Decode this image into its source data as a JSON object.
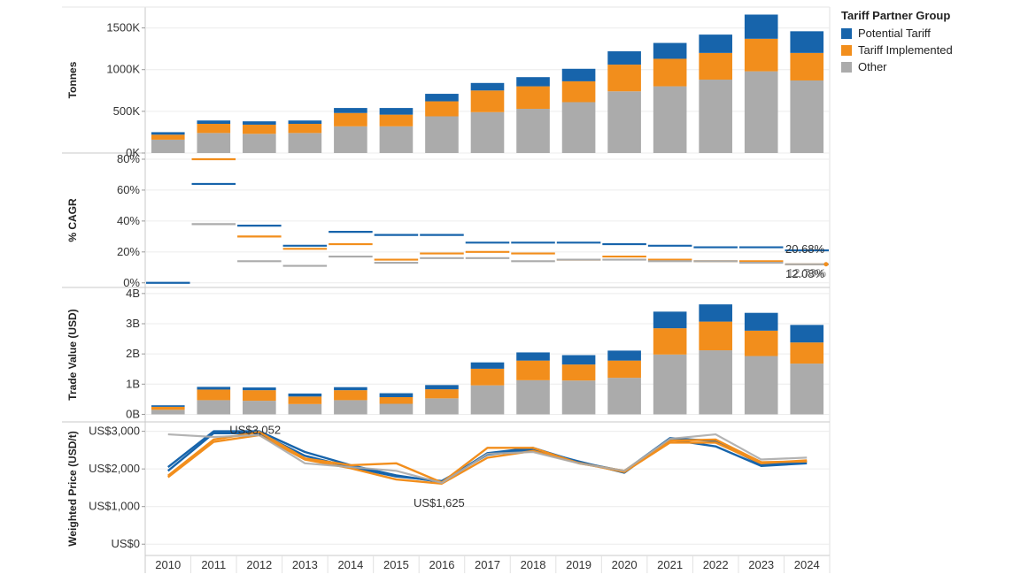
{
  "legend": {
    "title": "Tariff Partner Group",
    "items": [
      {
        "label": "Potential Tariff",
        "color": "#1764AB"
      },
      {
        "label": "Tariff Implemented",
        "color": "#F28E1C"
      },
      {
        "label": "Other",
        "color": "#ABABAB"
      }
    ]
  },
  "chart_data": [
    {
      "type": "bar",
      "stacked": true,
      "title": "",
      "ylabel": "Tonnes",
      "ylim": [
        0,
        1750000
      ],
      "yticks": [
        0,
        500000,
        1000000,
        1500000
      ],
      "yticklabels": [
        "0K",
        "500K",
        "1000K",
        "1500K"
      ],
      "categories": [
        "2010",
        "2011",
        "2012",
        "2013",
        "2014",
        "2015",
        "2016",
        "2017",
        "2018",
        "2019",
        "2020",
        "2021",
        "2022",
        "2023",
        "2024"
      ],
      "series": [
        {
          "name": "Other",
          "values": [
            160000,
            240000,
            230000,
            240000,
            320000,
            320000,
            440000,
            490000,
            530000,
            610000,
            740000,
            800000,
            880000,
            980000,
            870000
          ]
        },
        {
          "name": "Tariff Implemented",
          "values": [
            60000,
            110000,
            110000,
            110000,
            160000,
            140000,
            180000,
            260000,
            270000,
            250000,
            320000,
            330000,
            320000,
            390000,
            330000
          ]
        },
        {
          "name": "Potential Tariff",
          "values": [
            30000,
            40000,
            40000,
            40000,
            60000,
            80000,
            90000,
            90000,
            110000,
            150000,
            160000,
            190000,
            220000,
            290000,
            260000
          ]
        }
      ]
    },
    {
      "type": "line",
      "style": "segments",
      "ylabel": "% CAGR",
      "ylim": [
        -3,
        84
      ],
      "yticks": [
        0,
        20,
        40,
        60,
        80
      ],
      "yticklabels": [
        "0%",
        "20%",
        "40%",
        "60%",
        "80%"
      ],
      "categories": [
        "2010",
        "2011",
        "2012",
        "2013",
        "2014",
        "2015",
        "2016",
        "2017",
        "2018",
        "2019",
        "2020",
        "2021",
        "2022",
        "2023",
        "2024"
      ],
      "series": [
        {
          "name": "Potential Tariff",
          "values": [
            0,
            64,
            37,
            24,
            33,
            31,
            31,
            26,
            26,
            26,
            25,
            24,
            23,
            23,
            21
          ]
        },
        {
          "name": "Tariff Implemented",
          "values": [
            null,
            80,
            30,
            22,
            25,
            15,
            19,
            20,
            19,
            15,
            17,
            15,
            14,
            14,
            12
          ]
        },
        {
          "name": "Other",
          "values": [
            null,
            38,
            14,
            11,
            17,
            13,
            16,
            16,
            14,
            15,
            15,
            14,
            14,
            13,
            12
          ]
        }
      ],
      "annotations": [
        "20.68%",
        "12.08%",
        "12.73%"
      ]
    },
    {
      "type": "bar",
      "stacked": true,
      "ylabel": "Trade Value (USD)",
      "ylim": [
        -0.25,
        4.2
      ],
      "yticks": [
        0,
        1,
        2,
        3,
        4
      ],
      "yticklabels": [
        "0B",
        "1B",
        "2B",
        "3B",
        "4B"
      ],
      "categories": [
        "2010",
        "2011",
        "2012",
        "2013",
        "2014",
        "2015",
        "2016",
        "2017",
        "2018",
        "2019",
        "2020",
        "2021",
        "2022",
        "2023",
        "2024"
      ],
      "series": [
        {
          "name": "Other",
          "values": [
            0.15,
            0.47,
            0.45,
            0.34,
            0.47,
            0.35,
            0.53,
            0.96,
            1.13,
            1.12,
            1.21,
            1.98,
            2.12,
            1.93,
            1.68
          ]
        },
        {
          "name": "Tariff Implemented",
          "values": [
            0.1,
            0.35,
            0.35,
            0.25,
            0.33,
            0.22,
            0.3,
            0.55,
            0.65,
            0.53,
            0.57,
            0.87,
            0.95,
            0.84,
            0.7
          ]
        },
        {
          "name": "Potential Tariff",
          "values": [
            0.05,
            0.09,
            0.09,
            0.1,
            0.1,
            0.13,
            0.14,
            0.21,
            0.27,
            0.31,
            0.33,
            0.55,
            0.57,
            0.59,
            0.58
          ]
        }
      ]
    },
    {
      "type": "line",
      "ylabel": "Weighted Price (USD/t)",
      "ylim": [
        -300,
        3250
      ],
      "yticks": [
        0,
        1000,
        2000,
        3000
      ],
      "yticklabels": [
        "US$0",
        "US$1,000",
        "US$2,000",
        "US$3,000"
      ],
      "categories": [
        "2010",
        "2011",
        "2012",
        "2013",
        "2014",
        "2015",
        "2016",
        "2017",
        "2018",
        "2019",
        "2020",
        "2021",
        "2022",
        "2023",
        "2024"
      ],
      "series": [
        {
          "name": "Potential Tariff",
          "values": [
            2050,
            3000,
            3000,
            2450,
            2100,
            1830,
            1650,
            2420,
            2560,
            2180,
            1940,
            2820,
            2740,
            2120,
            2200
          ]
        },
        {
          "name": "Potential Tariff",
          "values": [
            1950,
            2950,
            2950,
            2350,
            2050,
            1800,
            1680,
            2380,
            2520,
            2200,
            1900,
            2780,
            2600,
            2080,
            2150
          ]
        },
        {
          "name": "Tariff Implemented",
          "values": [
            1820,
            2780,
            2980,
            2280,
            2100,
            2150,
            1640,
            2560,
            2560,
            2150,
            1950,
            2750,
            2780,
            2180,
            2200
          ]
        },
        {
          "name": "Tariff Implemented",
          "values": [
            1780,
            2720,
            2900,
            2250,
            2020,
            1720,
            1610,
            2300,
            2480,
            2160,
            1920,
            2700,
            2700,
            2150,
            2230
          ]
        },
        {
          "name": "Other",
          "values": [
            2920,
            2850,
            2900,
            2150,
            2050,
            1950,
            1630,
            2400,
            2450,
            2150,
            1950,
            2800,
            2920,
            2250,
            2300
          ]
        }
      ],
      "annotations": [
        "US$3,052",
        "US$1,625"
      ]
    }
  ]
}
